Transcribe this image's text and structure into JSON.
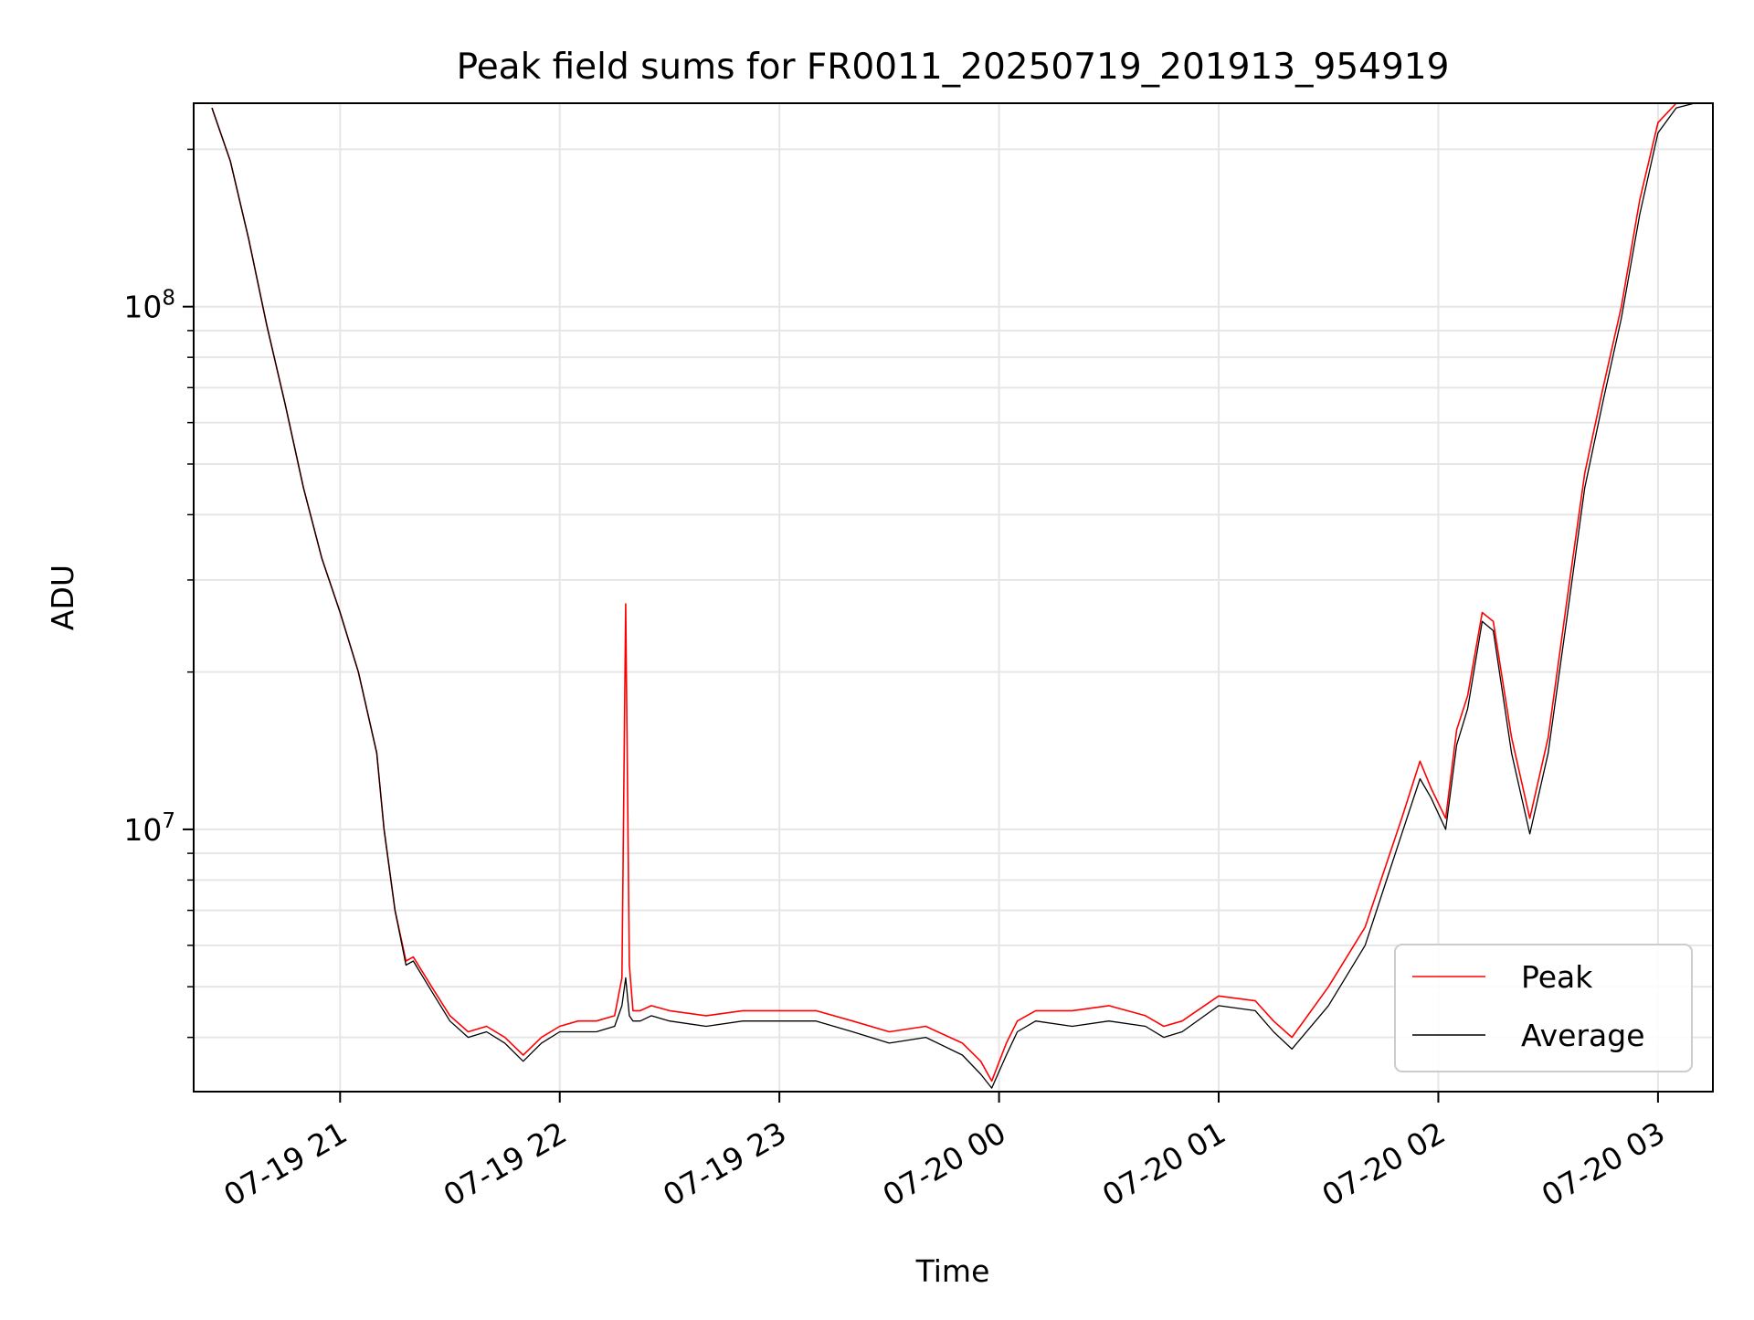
{
  "chart_data": {
    "type": "line",
    "title": "Peak field sums for FR0011_20250719_201913_954919",
    "xlabel": "Time",
    "ylabel": "ADU",
    "y_scale": "log",
    "grid": true,
    "legend_position": "lower-right",
    "xlim": [
      "2025-07-19 20:20",
      "2025-07-20 03:15"
    ],
    "ylim": [
      3150000,
      245000000
    ],
    "x_ticks": [
      {
        "value": "2025-07-19 21:00",
        "label": "07-19 21"
      },
      {
        "value": "2025-07-19 22:00",
        "label": "07-19 22"
      },
      {
        "value": "2025-07-19 23:00",
        "label": "07-19 23"
      },
      {
        "value": "2025-07-20 00:00",
        "label": "07-20 00"
      },
      {
        "value": "2025-07-20 01:00",
        "label": "07-20 01"
      },
      {
        "value": "2025-07-20 02:00",
        "label": "07-20 02"
      },
      {
        "value": "2025-07-20 03:00",
        "label": "07-20 03"
      }
    ],
    "y_major_ticks": [
      {
        "value": 10000000,
        "base": "10",
        "exp": "7"
      },
      {
        "value": 100000000,
        "base": "10",
        "exp": "8"
      }
    ],
    "y_minor_ticks": [
      4000000,
      5000000,
      6000000,
      7000000,
      8000000,
      9000000,
      20000000,
      30000000,
      40000000,
      50000000,
      60000000,
      70000000,
      80000000,
      90000000,
      200000000
    ],
    "series": [
      {
        "name": "Peak",
        "color": "#ff0000",
        "x": [
          "2025-07-19 20:25",
          "2025-07-19 20:30",
          "2025-07-19 20:35",
          "2025-07-19 20:40",
          "2025-07-19 20:45",
          "2025-07-19 20:50",
          "2025-07-19 20:55",
          "2025-07-19 21:00",
          "2025-07-19 21:05",
          "2025-07-19 21:10",
          "2025-07-19 21:12",
          "2025-07-19 21:15",
          "2025-07-19 21:18",
          "2025-07-19 21:20",
          "2025-07-19 21:25",
          "2025-07-19 21:30",
          "2025-07-19 21:35",
          "2025-07-19 21:40",
          "2025-07-19 21:45",
          "2025-07-19 21:50",
          "2025-07-19 21:55",
          "2025-07-19 22:00",
          "2025-07-19 22:05",
          "2025-07-19 22:10",
          "2025-07-19 22:15",
          "2025-07-19 22:17",
          "2025-07-19 22:18",
          "2025-07-19 22:19",
          "2025-07-19 22:20",
          "2025-07-19 22:22",
          "2025-07-19 22:25",
          "2025-07-19 22:30",
          "2025-07-19 22:40",
          "2025-07-19 22:50",
          "2025-07-19 23:00",
          "2025-07-19 23:10",
          "2025-07-19 23:20",
          "2025-07-19 23:30",
          "2025-07-19 23:40",
          "2025-07-19 23:50",
          "2025-07-19 23:55",
          "2025-07-19 23:58",
          "2025-07-20 00:02",
          "2025-07-20 00:05",
          "2025-07-20 00:10",
          "2025-07-20 00:20",
          "2025-07-20 00:30",
          "2025-07-20 00:40",
          "2025-07-20 00:45",
          "2025-07-20 00:50",
          "2025-07-20 01:00",
          "2025-07-20 01:10",
          "2025-07-20 01:15",
          "2025-07-20 01:20",
          "2025-07-20 01:30",
          "2025-07-20 01:40",
          "2025-07-20 01:50",
          "2025-07-20 01:55",
          "2025-07-20 01:58",
          "2025-07-20 02:02",
          "2025-07-20 02:05",
          "2025-07-20 02:08",
          "2025-07-20 02:12",
          "2025-07-20 02:15",
          "2025-07-20 02:20",
          "2025-07-20 02:25",
          "2025-07-20 02:30",
          "2025-07-20 02:35",
          "2025-07-20 02:40",
          "2025-07-20 02:45",
          "2025-07-20 02:50",
          "2025-07-20 02:55",
          "2025-07-20 03:00",
          "2025-07-20 03:05",
          "2025-07-20 03:10"
        ],
        "values": [
          240000000,
          190000000,
          135000000,
          92000000,
          65000000,
          45000000,
          33000000,
          26000000,
          20000000,
          14000000,
          10000000,
          7000000,
          5600000,
          5700000,
          5000000,
          4400000,
          4100000,
          4200000,
          4000000,
          3700000,
          4000000,
          4200000,
          4300000,
          4300000,
          4400000,
          5200000,
          27000000,
          5500000,
          4500000,
          4500000,
          4600000,
          4500000,
          4400000,
          4500000,
          4500000,
          4500000,
          4300000,
          4100000,
          4200000,
          3900000,
          3600000,
          3300000,
          3900000,
          4300000,
          4500000,
          4500000,
          4600000,
          4400000,
          4200000,
          4300000,
          4800000,
          4700000,
          4300000,
          4000000,
          5000000,
          6500000,
          10500000,
          13500000,
          12000000,
          10500000,
          15500000,
          18000000,
          26000000,
          25000000,
          15000000,
          10500000,
          15000000,
          27000000,
          48000000,
          70000000,
          100000000,
          160000000,
          225000000,
          245000000,
          245000000
        ]
      },
      {
        "name": "Average",
        "color": "#000000",
        "x": [
          "2025-07-19 20:25",
          "2025-07-19 20:30",
          "2025-07-19 20:35",
          "2025-07-19 20:40",
          "2025-07-19 20:45",
          "2025-07-19 20:50",
          "2025-07-19 20:55",
          "2025-07-19 21:00",
          "2025-07-19 21:05",
          "2025-07-19 21:10",
          "2025-07-19 21:12",
          "2025-07-19 21:15",
          "2025-07-19 21:18",
          "2025-07-19 21:20",
          "2025-07-19 21:25",
          "2025-07-19 21:30",
          "2025-07-19 21:35",
          "2025-07-19 21:40",
          "2025-07-19 21:45",
          "2025-07-19 21:50",
          "2025-07-19 21:55",
          "2025-07-19 22:00",
          "2025-07-19 22:05",
          "2025-07-19 22:10",
          "2025-07-19 22:15",
          "2025-07-19 22:17",
          "2025-07-19 22:18",
          "2025-07-19 22:19",
          "2025-07-19 22:20",
          "2025-07-19 22:22",
          "2025-07-19 22:25",
          "2025-07-19 22:30",
          "2025-07-19 22:40",
          "2025-07-19 22:50",
          "2025-07-19 23:00",
          "2025-07-19 23:10",
          "2025-07-19 23:20",
          "2025-07-19 23:30",
          "2025-07-19 23:40",
          "2025-07-19 23:50",
          "2025-07-19 23:55",
          "2025-07-19 23:58",
          "2025-07-20 00:02",
          "2025-07-20 00:05",
          "2025-07-20 00:10",
          "2025-07-20 00:20",
          "2025-07-20 00:30",
          "2025-07-20 00:40",
          "2025-07-20 00:45",
          "2025-07-20 00:50",
          "2025-07-20 01:00",
          "2025-07-20 01:10",
          "2025-07-20 01:15",
          "2025-07-20 01:20",
          "2025-07-20 01:30",
          "2025-07-20 01:40",
          "2025-07-20 01:50",
          "2025-07-20 01:55",
          "2025-07-20 01:58",
          "2025-07-20 02:02",
          "2025-07-20 02:05",
          "2025-07-20 02:08",
          "2025-07-20 02:12",
          "2025-07-20 02:15",
          "2025-07-20 02:20",
          "2025-07-20 02:25",
          "2025-07-20 02:30",
          "2025-07-20 02:35",
          "2025-07-20 02:40",
          "2025-07-20 02:45",
          "2025-07-20 02:50",
          "2025-07-20 02:55",
          "2025-07-20 03:00",
          "2025-07-20 03:05",
          "2025-07-20 03:10"
        ],
        "values": [
          240000000,
          190000000,
          135000000,
          92000000,
          65000000,
          45000000,
          33000000,
          26000000,
          20000000,
          14000000,
          10000000,
          7000000,
          5500000,
          5600000,
          4900000,
          4300000,
          4000000,
          4100000,
          3900000,
          3600000,
          3900000,
          4100000,
          4100000,
          4100000,
          4200000,
          4600000,
          5200000,
          4400000,
          4300000,
          4300000,
          4400000,
          4300000,
          4200000,
          4300000,
          4300000,
          4300000,
          4100000,
          3900000,
          4000000,
          3700000,
          3400000,
          3200000,
          3700000,
          4100000,
          4300000,
          4200000,
          4300000,
          4200000,
          4000000,
          4100000,
          4600000,
          4500000,
          4100000,
          3800000,
          4600000,
          6000000,
          9800000,
          12500000,
          11500000,
          10000000,
          14500000,
          17000000,
          25000000,
          24000000,
          14000000,
          9800000,
          14000000,
          25000000,
          45000000,
          66000000,
          95000000,
          150000000,
          215000000,
          240000000,
          245000000
        ]
      }
    ]
  }
}
